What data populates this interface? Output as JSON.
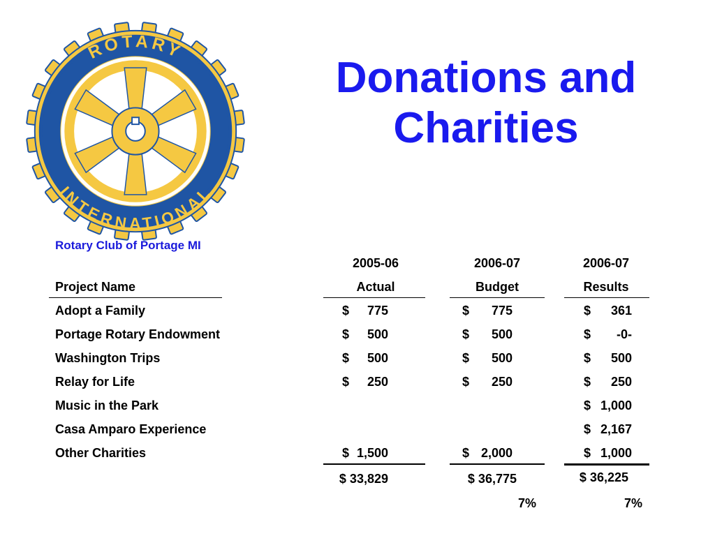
{
  "slide": {
    "title_line1": "Donations and",
    "title_line2": "Charities",
    "club_name": "Rotary Club of Portage MI",
    "logo": {
      "icon": "rotary-international-wheel-logo",
      "text_top": "ROTARY",
      "text_bottom": "INTERNATIONAL",
      "colors": {
        "gold": "#f5c842",
        "blue": "#1f55a4"
      }
    }
  },
  "table": {
    "columns": [
      {
        "year": "2005-06",
        "label": "Actual"
      },
      {
        "year": "2006-07",
        "label": "Budget"
      },
      {
        "year": "2006-07",
        "label": "Results"
      }
    ],
    "project_header": "Project Name",
    "rows": [
      {
        "name": "Adopt a Family",
        "actual": {
          "cur": "$",
          "amt": "775"
        },
        "budget": {
          "cur": "$",
          "amt": "775"
        },
        "results": {
          "cur": "$",
          "amt": "361"
        }
      },
      {
        "name": "Portage Rotary Endowment",
        "actual": {
          "cur": "$",
          "amt": "500"
        },
        "budget": {
          "cur": "$",
          "amt": "500"
        },
        "results": {
          "cur": "$",
          "amt": "-0-"
        }
      },
      {
        "name": "Washington Trips",
        "actual": {
          "cur": "$",
          "amt": "500"
        },
        "budget": {
          "cur": "$",
          "amt": "500"
        },
        "results": {
          "cur": "$",
          "amt": "500"
        }
      },
      {
        "name": "Relay for Life",
        "actual": {
          "cur": "$",
          "amt": "250"
        },
        "budget": {
          "cur": "$",
          "amt": "250"
        },
        "results": {
          "cur": "$",
          "amt": "250"
        }
      },
      {
        "name": "Music in the Park",
        "results": {
          "cur": "$",
          "amt": "1,000"
        }
      },
      {
        "name": "Casa Amparo Experience",
        "results": {
          "cur": "$",
          "amt": "2,167"
        }
      },
      {
        "name": "Other Charities",
        "actual": {
          "cur": "$",
          "amt": "1,500"
        },
        "budget": {
          "cur": "$",
          "amt": "2,000"
        },
        "results": {
          "cur": "$",
          "amt": "1,000"
        }
      }
    ],
    "totals": {
      "actual": "$ 33,829",
      "budget": "$  36,775",
      "results": "$  36,225"
    },
    "percents": {
      "budget": "7%",
      "results": "7%"
    }
  }
}
